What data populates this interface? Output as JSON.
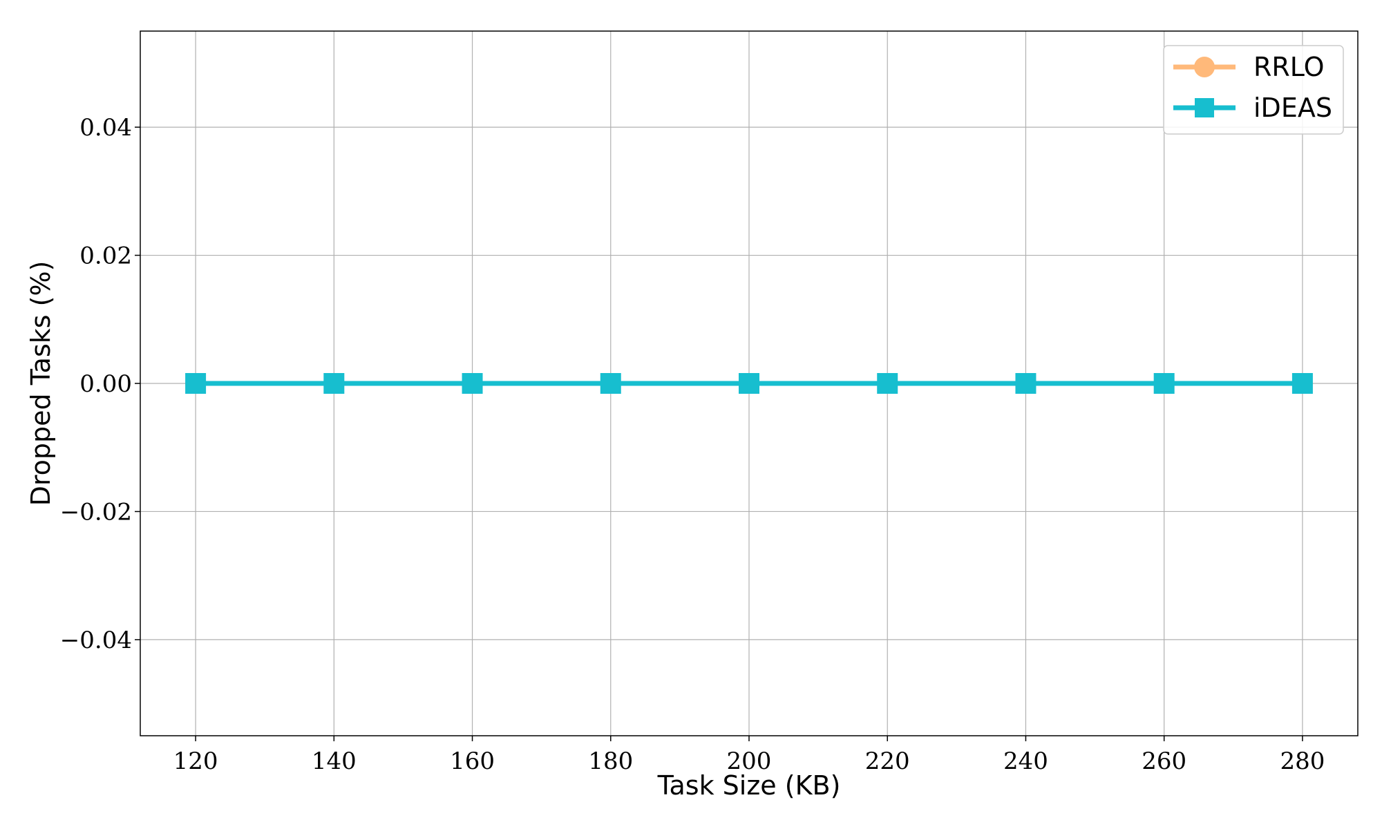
{
  "chart_data": {
    "type": "line",
    "x": [
      120,
      140,
      160,
      180,
      200,
      220,
      240,
      260,
      280
    ],
    "series": [
      {
        "name": "RRLO",
        "values": [
          0,
          0,
          0,
          0,
          0,
          0,
          0,
          0,
          0
        ],
        "color": "#ffb97a",
        "marker": "circle"
      },
      {
        "name": "iDEAS",
        "values": [
          0,
          0,
          0,
          0,
          0,
          0,
          0,
          0,
          0
        ],
        "color": "#17becf",
        "marker": "square"
      }
    ],
    "xlabel": "Task Size (KB)",
    "ylabel": "Dropped Tasks (%)",
    "xticks": [
      120,
      140,
      160,
      180,
      200,
      220,
      240,
      260,
      280
    ],
    "xtick_labels": [
      "120",
      "140",
      "160",
      "180",
      "200",
      "220",
      "240",
      "260",
      "280"
    ],
    "yticks": [
      -0.04,
      -0.02,
      0.0,
      0.02,
      0.04
    ],
    "ytick_labels": [
      "−0.04",
      "−0.02",
      "0.00",
      "0.02",
      "0.04"
    ],
    "xlim": [
      112,
      288
    ],
    "ylim": [
      -0.055,
      0.055
    ],
    "grid": true,
    "legend_position": "top-right"
  }
}
